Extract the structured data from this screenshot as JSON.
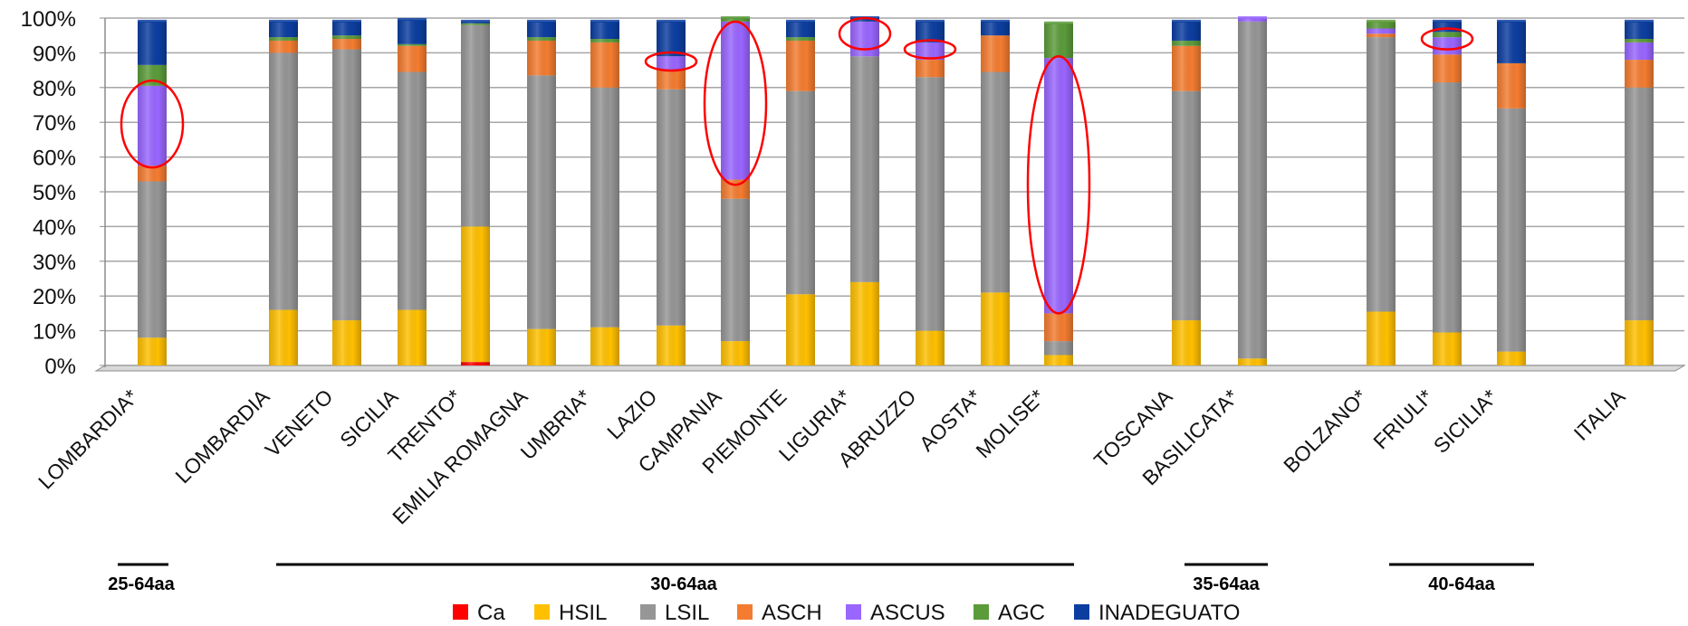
{
  "chart_data": {
    "type": "bar",
    "stacked": true,
    "percent": true,
    "ylim": [
      0,
      100
    ],
    "yticks": [
      "0%",
      "10%",
      "20%",
      "30%",
      "40%",
      "50%",
      "60%",
      "70%",
      "80%",
      "90%",
      "100%"
    ],
    "categories": [
      "LOMBARDIA*",
      "LOMBARDIA",
      "VENETO",
      "SICILIA",
      "TRENTO*",
      "EMILIA ROMAGNA",
      "UMBRIA*",
      "LAZIO",
      "CAMPANIA",
      "PIEMONTE",
      "LIGURIA*",
      "ABRUZZO",
      "AOSTA*",
      "MOLISE*",
      "TOSCANA",
      "BASILICATA*",
      "BOLZANO*",
      "FRIULI*",
      "SICILIA*",
      "ITALIA"
    ],
    "series": [
      {
        "name": "Ca",
        "color": "#ff0000",
        "values": [
          0,
          0,
          0,
          0,
          1,
          0,
          0,
          0,
          0,
          0,
          0,
          0,
          0,
          0,
          0,
          0,
          0,
          0,
          0,
          0
        ]
      },
      {
        "name": "HSIL",
        "color": "#ffc000",
        "values": [
          8,
          16,
          13,
          16,
          39,
          10.5,
          11,
          11.5,
          7,
          20.5,
          24,
          10,
          21,
          3,
          13,
          2,
          15.5,
          9.5,
          4,
          13
        ]
      },
      {
        "name": "LSIL",
        "color": "#969696",
        "values": [
          45,
          74,
          78,
          68.5,
          58,
          73,
          69,
          68,
          41,
          58.5,
          65,
          73,
          63.5,
          4,
          66,
          97,
          79,
          72,
          70,
          67
        ]
      },
      {
        "name": "ASCH",
        "color": "#f47c30",
        "values": [
          4.5,
          3.5,
          3,
          7.5,
          0,
          10,
          13,
          5.5,
          5.5,
          14.5,
          0,
          5,
          10.5,
          8,
          13,
          0,
          1,
          8,
          13,
          8
        ]
      },
      {
        "name": "ASCUS",
        "color": "#9966ff",
        "values": [
          23,
          0,
          0,
          0,
          0,
          0,
          0,
          4,
          45.5,
          0,
          10,
          5,
          0,
          73.5,
          0,
          1,
          1.5,
          5,
          0,
          5
        ]
      },
      {
        "name": "AGC",
        "color": "#5b9b3a",
        "values": [
          6,
          1,
          1,
          0.5,
          0.5,
          1,
          1,
          0,
          1,
          1,
          0,
          0,
          0,
          10,
          1.5,
          0,
          2,
          1.5,
          0,
          1
        ]
      },
      {
        "name": "INADEGUATO",
        "color": "#0c3ea0",
        "values": [
          12.5,
          4.5,
          4,
          7,
          0.5,
          4.5,
          5,
          10,
          0,
          4.5,
          1,
          6,
          4,
          0,
          5.5,
          0,
          0,
          3,
          12,
          5
        ]
      }
    ],
    "highlights": [
      {
        "category": "LOMBARDIA*",
        "range": [
          57,
          82
        ]
      },
      {
        "category": "LAZIO",
        "range": [
          85,
          90
        ]
      },
      {
        "category": "CAMPANIA",
        "range": [
          52,
          99
        ]
      },
      {
        "category": "LIGURIA*",
        "range": [
          91,
          100
        ]
      },
      {
        "category": "ABRUZZO",
        "range": [
          89,
          93
        ]
      },
      {
        "category": "MOLISE*",
        "range": [
          15,
          89
        ]
      },
      {
        "category": "FRIULI*",
        "range": [
          91,
          97
        ]
      }
    ],
    "age_groups": [
      {
        "label": "25-64aa",
        "from": "LOMBARDIA*",
        "to": "LOMBARDIA*"
      },
      {
        "label": "30-64aa",
        "from": "LOMBARDIA",
        "to": "MOLISE*"
      },
      {
        "label": "35-64aa",
        "from": "TOSCANA",
        "to": "BASILICATA*"
      },
      {
        "label": "40-64aa",
        "from": "BOLZANO*",
        "to": "SICILIA*"
      }
    ],
    "legend_position": "bottom"
  }
}
